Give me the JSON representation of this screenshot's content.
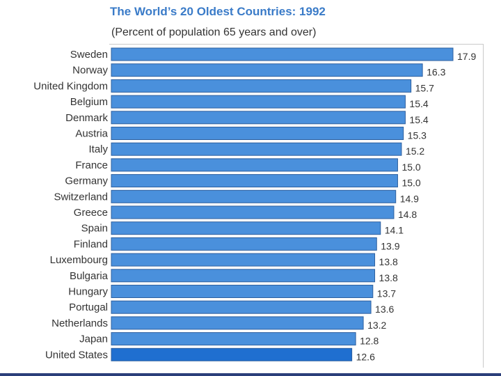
{
  "chart_data": {
    "type": "bar",
    "orientation": "horizontal",
    "title": "The World’s 20 Oldest Countries:  1992",
    "subtitle": "(Percent of population 65 years and over)",
    "categories": [
      "Sweden",
      "Norway",
      "United Kingdom",
      "Belgium",
      "Denmark",
      "Austria",
      "Italy",
      "France",
      "Germany",
      "Switzerland",
      "Greece",
      "Spain",
      "Finland",
      "Luxembourg",
      "Bulgaria",
      "Hungary",
      "Portugal",
      "Netherlands",
      "Japan",
      "United States"
    ],
    "values": [
      17.9,
      16.3,
      15.7,
      15.4,
      15.4,
      15.3,
      15.2,
      15.0,
      15.0,
      14.9,
      14.8,
      14.1,
      13.9,
      13.8,
      13.8,
      13.7,
      13.6,
      13.2,
      12.8,
      12.6
    ],
    "value_labels": [
      "17.9",
      "16.3",
      "15.7",
      "15.4",
      "15.4",
      "15.3",
      "15.2",
      "15.0",
      "15.0",
      "14.9",
      "14.8",
      "14.1",
      "13.9",
      "13.8",
      "13.8",
      "13.7",
      "13.6",
      "13.2",
      "12.8",
      "12.6"
    ],
    "xlim": [
      0,
      17.9
    ],
    "xlabel": "",
    "ylabel": "",
    "bar_color": "#4a90dc",
    "highlight_color": "#1f6fd0",
    "highlight_category": "United States",
    "label_color": "#333333"
  }
}
